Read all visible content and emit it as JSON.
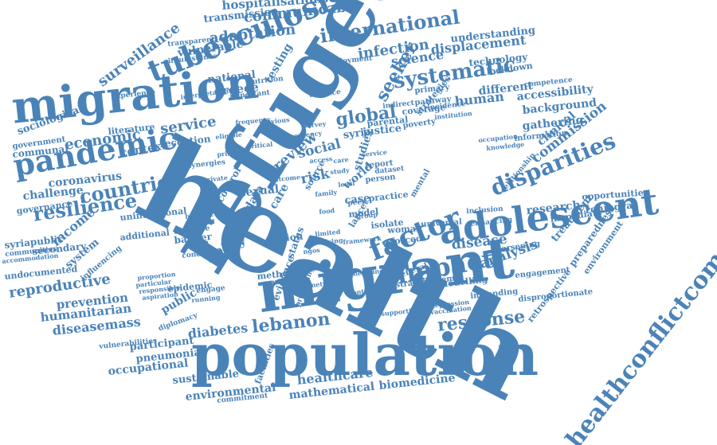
{
  "word_cloud": {
    "color": "#4a83b8",
    "words": [
      "health",
      "refugee",
      "migrant",
      "population",
      "migration",
      "adolescent",
      "tuberculosis",
      "pandemic",
      "factor",
      "impact",
      "systematic",
      "disparities",
      "healthconflictcommunicable",
      "international",
      "countrie",
      "resilience",
      "lebanon",
      "global",
      "response",
      "communicable",
      "surveillance",
      "adaptation",
      "infection",
      "displacement",
      "economic",
      "service",
      "reproductive",
      "disease",
      "analysis",
      "policy",
      "review",
      "social",
      "risk",
      "commission",
      "research",
      "diabetes",
      "healthcare",
      "biomedicine",
      "environmental",
      "mathematical",
      "sustainable",
      "occupational",
      "pneumonia",
      "participant",
      "diseasemass",
      "humanitarian",
      "prevention",
      "public",
      "syriapublic",
      "undocumented",
      "coronavirus",
      "challenge",
      "governance",
      "sociological",
      "government",
      "communal",
      "context",
      "reception",
      "hospitalisations",
      "transmission",
      "vulnerable",
      "national",
      "greece",
      "testing",
      "seeker",
      "science",
      "human",
      "different",
      "accessibility",
      "background",
      "gathering",
      "clinical",
      "understanding",
      "technology",
      "lockdown",
      "primary",
      "syria",
      "justice",
      "world",
      "studies",
      "income",
      "system",
      "treatment",
      "preparedness",
      "environment",
      "rohingya",
      "opportunities",
      "immediate",
      "worsening",
      "engagement",
      "impending",
      "disproportionate",
      "retrospective",
      "child",
      "evidence",
      "action",
      "method",
      "number",
      "status",
      "sexual",
      "data",
      "care",
      "case",
      "model",
      "woman",
      "forced",
      "isolate",
      "universal",
      "inclusion",
      "enhancing",
      "relationship",
      "information",
      "modelling",
      "secondary",
      "epidemic",
      "additional",
      "unintentional",
      "barrier",
      "database",
      "condition",
      "control",
      "literature",
      "experience",
      "interpretation",
      "transparent",
      "circumstance",
      "vulnerabilities",
      "accommodation",
      "communities",
      "influencing",
      "diplomacy",
      "commitment",
      "facilities",
      "strategy",
      "general",
      "syndemic",
      "protecting",
      "contribute",
      "peer",
      "lancet",
      "practice",
      "report",
      "person",
      "poverty",
      "parental",
      "incidence",
      "institution",
      "competence",
      "knowledge",
      "occupation",
      "dataset",
      "coverage",
      "strategies",
      "synergies",
      "nutrition",
      "employment",
      "pathway",
      "indirect",
      "important",
      "alliance",
      "running",
      "engage",
      "framework",
      "frequency",
      "particular",
      "proportion",
      "responsible",
      "aspiration",
      "depression",
      "vaccination",
      "supportive",
      "network",
      "previous",
      "survey",
      "outcome",
      "critical",
      "eligible",
      "primarily",
      "emergency",
      "mental",
      "limited",
      "family",
      "living",
      "level",
      "ngos",
      "medicine",
      "food",
      "care",
      "access",
      "study",
      "source",
      "service",
      "group",
      "private",
      "factors",
      "trial",
      "burden",
      "mobile"
    ]
  }
}
